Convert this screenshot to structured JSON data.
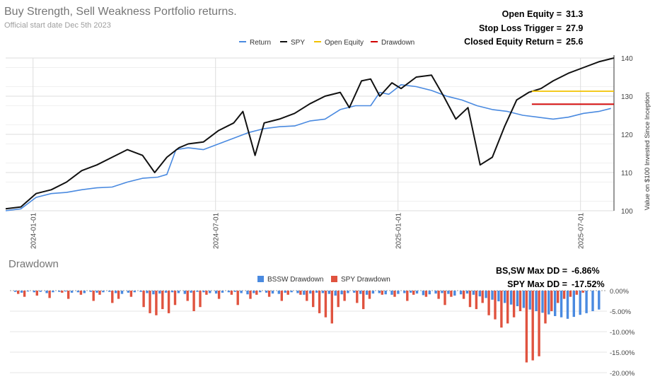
{
  "header": {
    "title": "Buy Strength, Sell Weakness Portfolio returns.",
    "subtitle": "Official start date Dec 5th 2023"
  },
  "stats": [
    {
      "label": "Open Equity =",
      "value": "31.3"
    },
    {
      "label": "Stop Loss Trigger =",
      "value": "27.9"
    },
    {
      "label": "Closed Equity Return =",
      "value": "25.6"
    }
  ],
  "drawdown_section": {
    "title": "Drawdown",
    "stats": [
      {
        "label": "BS,SW Max DD =",
        "value": "-6.86%"
      },
      {
        "label": "SPY Max DD =",
        "value": "-17.52%"
      }
    ]
  },
  "colors": {
    "return": "#4a8ae0",
    "spy": "#111111",
    "open_equity": "#f2c200",
    "drawdown": "#d10000",
    "bssw_dd": "#4a8ae0",
    "spy_dd": "#e0533f",
    "grid": "#dddddd"
  },
  "chart_data": [
    {
      "type": "line",
      "title": "Buy Strength, Sell Weakness Portfolio returns.",
      "ylabel": "Value on $100 Invested Since Inception",
      "ylim": [
        100,
        140
      ],
      "y_ticks": [
        "100",
        "110",
        "120",
        "130",
        "140"
      ],
      "x_ticks": [
        "2024-01-01",
        "2024-07-01",
        "2025-01-01",
        "2025-07-01"
      ],
      "x_tick_months": [
        0.9,
        6.9,
        12.9,
        18.9
      ],
      "x_range_months": [
        0,
        20.0
      ],
      "legend": [
        "Return",
        "SPY",
        "Open Equity",
        "Drawdown"
      ],
      "legend_position": "top",
      "series": [
        {
          "name": "Return",
          "points": [
            [
              0,
              100
            ],
            [
              0.5,
              100.5
            ],
            [
              1,
              103.5
            ],
            [
              1.5,
              104.5
            ],
            [
              2,
              104.8
            ],
            [
              2.5,
              105.5
            ],
            [
              3,
              106
            ],
            [
              3.5,
              106.2
            ],
            [
              4,
              107.5
            ],
            [
              4.5,
              108.5
            ],
            [
              5,
              108.8
            ],
            [
              5.3,
              109.5
            ],
            [
              5.6,
              116
            ],
            [
              6,
              116.5
            ],
            [
              6.5,
              116
            ],
            [
              7,
              117.5
            ],
            [
              7.5,
              119
            ],
            [
              8,
              120.5
            ],
            [
              8.5,
              121.5
            ],
            [
              9,
              122
            ],
            [
              9.5,
              122.2
            ],
            [
              10,
              123.5
            ],
            [
              10.5,
              124
            ],
            [
              11,
              126.5
            ],
            [
              11.5,
              127.5
            ],
            [
              12,
              127.5
            ],
            [
              12.3,
              131
            ],
            [
              12.6,
              130.5
            ],
            [
              13,
              133
            ],
            [
              13.5,
              132.5
            ],
            [
              14,
              131.5
            ],
            [
              14.5,
              130
            ],
            [
              15,
              129
            ],
            [
              15.5,
              127.5
            ],
            [
              16,
              126.5
            ],
            [
              16.5,
              126
            ],
            [
              17,
              125
            ],
            [
              17.5,
              124.5
            ],
            [
              18,
              124
            ],
            [
              18.5,
              124.5
            ],
            [
              19,
              125.5
            ],
            [
              19.5,
              126
            ],
            [
              19.9,
              126.8
            ]
          ]
        },
        {
          "name": "SPY",
          "points": [
            [
              0,
              100.5
            ],
            [
              0.5,
              101
            ],
            [
              1,
              104.5
            ],
            [
              1.5,
              105.5
            ],
            [
              2,
              107.5
            ],
            [
              2.5,
              110.5
            ],
            [
              3,
              112
            ],
            [
              3.5,
              114
            ],
            [
              4,
              116
            ],
            [
              4.5,
              114.5
            ],
            [
              4.9,
              110
            ],
            [
              5.3,
              114
            ],
            [
              5.7,
              116.5
            ],
            [
              6,
              117.5
            ],
            [
              6.5,
              118
            ],
            [
              7,
              121
            ],
            [
              7.5,
              123
            ],
            [
              7.8,
              126
            ],
            [
              8.2,
              114.5
            ],
            [
              8.5,
              123
            ],
            [
              9,
              124
            ],
            [
              9.5,
              125.5
            ],
            [
              10,
              128
            ],
            [
              10.5,
              130
            ],
            [
              11,
              131
            ],
            [
              11.3,
              127
            ],
            [
              11.7,
              134
            ],
            [
              12,
              134.5
            ],
            [
              12.3,
              130
            ],
            [
              12.7,
              133.5
            ],
            [
              13,
              132
            ],
            [
              13.5,
              135
            ],
            [
              14,
              135.5
            ],
            [
              14.4,
              130
            ],
            [
              14.8,
              124
            ],
            [
              15.2,
              127
            ],
            [
              15.6,
              112
            ],
            [
              16,
              114
            ],
            [
              16.4,
              122
            ],
            [
              16.8,
              129
            ],
            [
              17.2,
              131
            ],
            [
              17.6,
              132
            ],
            [
              18,
              134
            ],
            [
              18.5,
              136
            ],
            [
              19,
              137.5
            ],
            [
              19.5,
              139
            ],
            [
              20,
              140
            ]
          ]
        },
        {
          "name": "Open Equity",
          "points": [
            [
              17.3,
              131.3
            ],
            [
              20,
              131.3
            ]
          ]
        },
        {
          "name": "Drawdown",
          "points": [
            [
              17.3,
              127.9
            ],
            [
              20,
              127.9
            ]
          ]
        }
      ]
    },
    {
      "type": "bar",
      "title": "Drawdown",
      "ylim": [
        -20,
        0
      ],
      "y_ticks": [
        "0.00%",
        "-5.00%",
        "-10.00%",
        "-15.00%",
        "-20.00%"
      ],
      "legend": [
        "BSSW Drawdown",
        "SPY Drawdown"
      ],
      "legend_position": "top",
      "series": [
        {
          "name": "BSSW Drawdown",
          "values": [
            -0.3,
            -0.5,
            -0.2,
            -0.4,
            -0.3,
            -0.6,
            -0.4,
            -0.3,
            -0.2,
            -0.5,
            -0.4,
            -0.6,
            -0.3,
            -0.5,
            -0.4,
            -0.3,
            -0.6,
            -0.8,
            -0.5,
            -0.4,
            -0.3,
            -0.6,
            -0.9,
            -0.7,
            -0.5,
            -0.4,
            -0.6,
            -0.8,
            -0.5,
            -0.3,
            -0.4,
            -0.6,
            -0.7,
            -0.5,
            -0.4,
            -0.3,
            -0.6,
            -0.9,
            -0.6,
            -0.4,
            -0.5,
            -0.7,
            -0.8,
            -0.5,
            -0.4,
            -0.6,
            -1.0,
            -0.7,
            -0.5,
            -0.6,
            -0.8,
            -1.2,
            -0.9,
            -0.6,
            -0.5,
            -0.8,
            -1.0,
            -0.7,
            -0.6,
            -0.9,
            -1.0,
            -0.8,
            -0.6,
            -0.5,
            -0.7,
            -1.1,
            -0.9,
            -0.7,
            -0.6,
            -0.8,
            -1.2,
            -0.9,
            -0.7,
            -1.0,
            -1.4,
            -1.8,
            -2.2,
            -2.6,
            -3.0,
            -3.4,
            -3.8,
            -4.2,
            -4.6,
            -5.0,
            -5.4,
            -5.8,
            -6.2,
            -6.5,
            -6.86,
            -6.4,
            -5.9,
            -5.5,
            -5.0,
            -4.6
          ]
        },
        {
          "name": "SPY Drawdown",
          "values": [
            -0.8,
            -1.5,
            0,
            -1.2,
            0,
            -1.8,
            0,
            -0.5,
            -2.0,
            0,
            -1.0,
            0,
            -2.5,
            -1.0,
            0,
            -3.0,
            -2.0,
            0,
            -1.5,
            0,
            -4.0,
            -5.5,
            -6.0,
            -4.5,
            -5.5,
            -3.5,
            0,
            -2.5,
            -5.0,
            -4.0,
            -1.0,
            0,
            -2.0,
            0,
            -1.0,
            -3.5,
            0,
            -2.0,
            -1.0,
            0,
            -1.5,
            0,
            -2.5,
            -1.0,
            0,
            -1.0,
            -2.5,
            -4.0,
            -5.5,
            -6.5,
            -8.0,
            -4.0,
            -2.5,
            0,
            -3.0,
            -4.5,
            -2.0,
            0,
            -1.0,
            0,
            -1.5,
            0,
            -2.5,
            -1.0,
            0,
            -1.5,
            0,
            -2.0,
            -3.5,
            -1.5,
            0,
            -2.0,
            -4.0,
            -4.5,
            -3.0,
            -6.0,
            -7.0,
            -9.0,
            -8.0,
            -6.5,
            -5.0,
            -17.5,
            -17.0,
            -16.0,
            -8.0,
            -5.0,
            -3.0,
            -2.0,
            -1.5,
            -1.0,
            -0.5,
            0,
            0,
            0
          ]
        }
      ]
    }
  ]
}
